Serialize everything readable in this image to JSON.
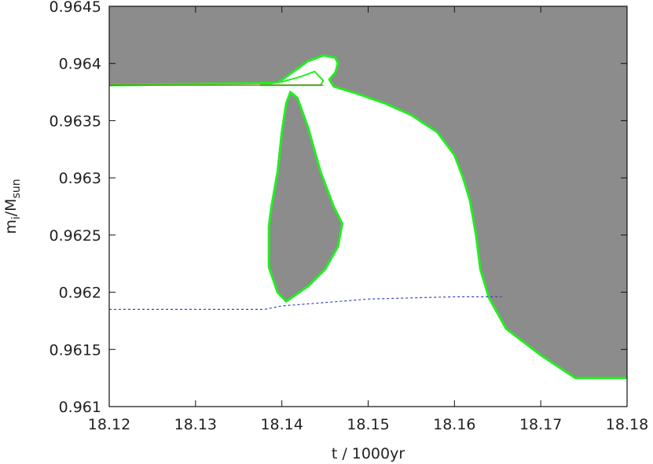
{
  "chart_data": {
    "type": "area",
    "xlabel": "t / 1000yr",
    "ylabel": {
      "m": "m",
      "sub1": "i",
      "mid": "/M",
      "sub2": "sun"
    },
    "xlim": [
      18.12,
      18.18
    ],
    "ylim": [
      0.961,
      0.9645
    ],
    "x_ticks": [
      18.12,
      18.13,
      18.14,
      18.15,
      18.16,
      18.17,
      18.18
    ],
    "x_tick_labels": [
      "18.12",
      "18.13",
      "18.14",
      "18.15",
      "18.16",
      "18.17",
      "18.18"
    ],
    "y_ticks": [
      0.961,
      0.9615,
      0.962,
      0.9625,
      0.963,
      0.9635,
      0.964,
      0.9645
    ],
    "y_tick_labels": [
      "0.961",
      "0.9615",
      "0.962",
      "0.9625",
      "0.963",
      "0.9635",
      "0.964",
      "0.9645"
    ],
    "grid": false,
    "colors": {
      "region": "#8c8c8c",
      "boundary": "#22ee22",
      "red_line": "#cc3333",
      "blue_dashed": "#3344cc"
    },
    "upper_region": [
      [
        18.12,
        0.9645
      ],
      [
        18.18,
        0.9645
      ],
      [
        18.18,
        0.96125
      ],
      [
        18.174,
        0.96125
      ],
      [
        18.17,
        0.96145
      ],
      [
        18.166,
        0.96168
      ],
      [
        18.164,
        0.96195
      ],
      [
        18.163,
        0.9622
      ],
      [
        18.1625,
        0.9625
      ],
      [
        18.1618,
        0.9628
      ],
      [
        18.161,
        0.963
      ],
      [
        18.16,
        0.9632
      ],
      [
        18.158,
        0.9634
      ],
      [
        18.155,
        0.96355
      ],
      [
        18.152,
        0.96365
      ],
      [
        18.149,
        0.96373
      ],
      [
        18.146,
        0.9638
      ],
      [
        18.1455,
        0.96386
      ],
      [
        18.1462,
        0.96392
      ],
      [
        18.1465,
        0.964
      ],
      [
        18.1462,
        0.96405
      ],
      [
        18.1448,
        0.96407
      ],
      [
        18.143,
        0.96402
      ],
      [
        18.141,
        0.96391
      ],
      [
        18.1395,
        0.96383
      ],
      [
        18.12,
        0.96381
      ]
    ],
    "bubble": [
      [
        18.1375,
        0.96381
      ],
      [
        18.14,
        0.96384
      ],
      [
        18.142,
        0.96388
      ],
      [
        18.1438,
        0.96393
      ],
      [
        18.1448,
        0.96385
      ],
      [
        18.1445,
        0.96381
      ],
      [
        18.142,
        0.96381
      ]
    ],
    "island": [
      [
        18.1385,
        0.96258
      ],
      [
        18.1388,
        0.96275
      ],
      [
        18.1395,
        0.96305
      ],
      [
        18.14,
        0.9634
      ],
      [
        18.1405,
        0.96365
      ],
      [
        18.141,
        0.96375
      ],
      [
        18.1418,
        0.9637
      ],
      [
        18.143,
        0.96345
      ],
      [
        18.1445,
        0.96305
      ],
      [
        18.146,
        0.96275
      ],
      [
        18.147,
        0.9626
      ],
      [
        18.1465,
        0.9624
      ],
      [
        18.145,
        0.9622
      ],
      [
        18.143,
        0.96205
      ],
      [
        18.1405,
        0.96192
      ],
      [
        18.1395,
        0.962
      ],
      [
        18.1385,
        0.96222
      ]
    ],
    "red_line": {
      "x": [
        18.12,
        18.1448
      ],
      "y": [
        0.96381,
        0.96381
      ]
    },
    "blue_dashed": {
      "x": [
        18.12,
        18.138,
        18.14,
        18.145,
        18.15,
        18.155,
        18.16,
        18.1655
      ],
      "y": [
        0.96185,
        0.96185,
        0.96188,
        0.96191,
        0.96194,
        0.96195,
        0.96196,
        0.96196
      ]
    }
  }
}
